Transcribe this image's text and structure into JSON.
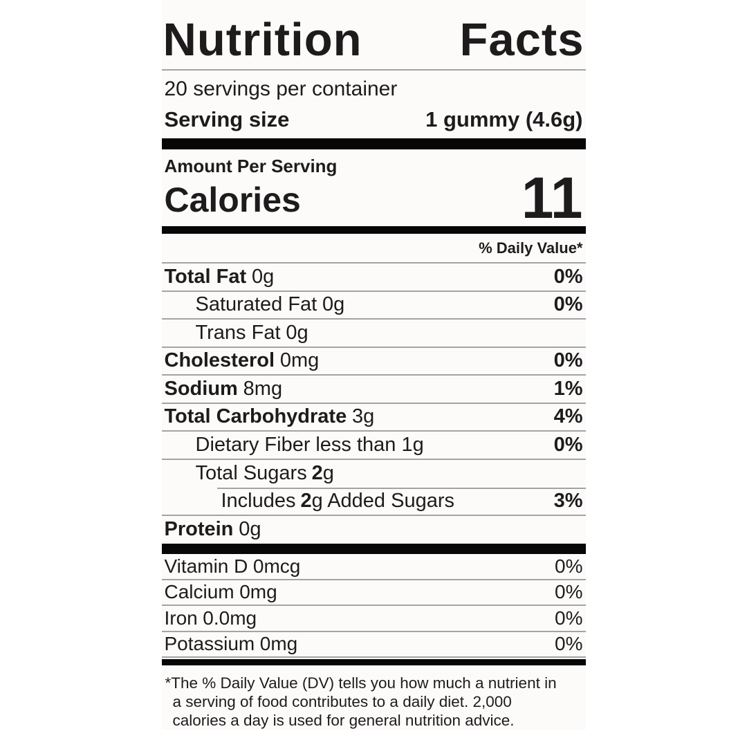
{
  "label": {
    "title_words": [
      "Nutrition",
      "Facts"
    ],
    "servings_line": "20 servings per container",
    "serving_size": {
      "label": "Serving size",
      "value": "1 gummy (4.6g)"
    },
    "calories_section": {
      "heading": "Amount Per Serving",
      "label": "Calories",
      "value": "11"
    },
    "daily_value_header": "% Daily Value*",
    "nutrients": [
      {
        "name": "Total Fat",
        "amount": "0g",
        "dv": "0%"
      },
      {
        "name": "Saturated Fat",
        "amount": "0g",
        "dv": "0%"
      },
      {
        "name": "Trans Fat",
        "amount": "0g",
        "dv": ""
      },
      {
        "name": "Cholesterol",
        "amount": "0mg",
        "dv": "0%"
      },
      {
        "name": "Sodium",
        "amount": "8mg",
        "dv": "1%"
      },
      {
        "name": "Total Carbohydrate",
        "amount": "3g",
        "dv": "4%"
      },
      {
        "name": "Dietary Fiber",
        "amount": "less than 1g",
        "dv": "0%"
      },
      {
        "name": "Total Sugars",
        "amount_number": "2",
        "amount_unit": "g",
        "dv": ""
      },
      {
        "pre": "Includes",
        "amount_number": "2",
        "post": "g Added Sugars",
        "dv": "3%"
      },
      {
        "name": "Protein",
        "amount": "0g",
        "dv": ""
      }
    ],
    "micronutrients": [
      {
        "name": "Vitamin D",
        "amount": "0mcg",
        "dv": "0%"
      },
      {
        "name": "Calcium",
        "amount": "0mg",
        "dv": "0%"
      },
      {
        "name": "Iron",
        "amount": "0.0mg",
        "dv": "0%"
      },
      {
        "name": "Potassium",
        "amount": "0mg",
        "dv": "0%"
      }
    ],
    "footnote": {
      "marker": "*",
      "text": "The % Daily Value (DV) tells you how much a nutrient in a serving of food contributes to a daily diet. 2,000 calories a day is used for general nutrition advice."
    },
    "colors": {
      "text": "#1d1b1c",
      "bar": "#070707",
      "hairline": "#a3a3a3",
      "background": "#fcfbf9"
    }
  }
}
